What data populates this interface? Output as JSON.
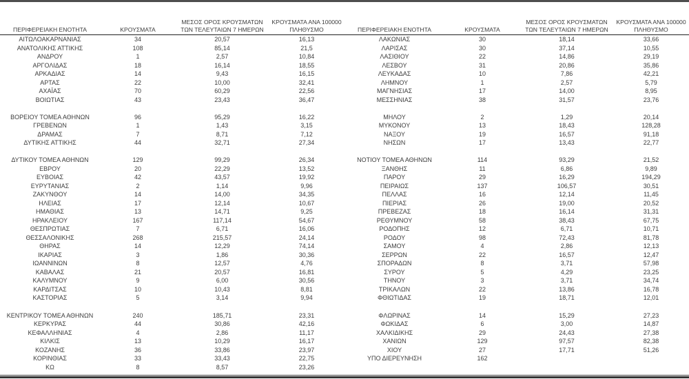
{
  "colors": {
    "text": "#3d3d3d",
    "rule": "#333333"
  },
  "headers": {
    "region": "ΠΕΡΙΦΕΡΕΙΑΚΗ ΕΝΟΤΗΤΑ",
    "cases": "ΚΡΟΥΣΜΑΤΑ",
    "avg7_line1": "ΜΕΣΟΣ ΟΡΟΣ ΚΡΟΥΣΜΑΤΩΝ",
    "avg7_line2": "ΤΩΝ ΤΕΛΕΥΤΑΙΩΝ 7 ΗΜΕΡΩΝ",
    "per100k_line1": "ΚΡΟΥΣΜΑΤΑ ΑΝΑ 100000",
    "per100k_line2": "ΠΛΗΘΥΣΜΟ"
  },
  "left_table": {
    "rows": [
      [
        "ΑΙΤΩΛΟΑΚΑΡΝΑΝΙΑΣ",
        "34",
        "20,57",
        "16,13"
      ],
      [
        "ΑΝΑΤΟΛΙΚΗΣ ΑΤΤΙΚΗΣ",
        "108",
        "85,14",
        "21,5"
      ],
      [
        "ΑΝΔΡΟΥ",
        "1",
        "2,57",
        "10,84"
      ],
      [
        "ΑΡΓΟΛΙΔΑΣ",
        "18",
        "16,14",
        "18,55"
      ],
      [
        "ΑΡΚΑΔΙΑΣ",
        "14",
        "9,43",
        "16,15"
      ],
      [
        "ΑΡΤΑΣ",
        "22",
        "10,00",
        "32,41"
      ],
      [
        "ΑΧΑΪΑΣ",
        "70",
        "60,29",
        "22,56"
      ],
      [
        "ΒΟΙΩΤΙΑΣ",
        "43",
        "23,43",
        "36,47"
      ],
      null,
      [
        "ΒΟΡΕΙΟΥ ΤΟΜΕΑ ΑΘΗΝΩΝ",
        "96",
        "95,29",
        "16,22"
      ],
      [
        "ΓΡΕΒΕΝΩΝ",
        "1",
        "1,43",
        "3,15"
      ],
      [
        "ΔΡΑΜΑΣ",
        "7",
        "8,71",
        "7,12"
      ],
      [
        "ΔΥΤΙΚΗΣ ΑΤΤΙΚΗΣ",
        "44",
        "32,71",
        "27,34"
      ],
      null,
      [
        "ΔΥΤΙΚΟΥ ΤΟΜΕΑ ΑΘΗΝΩΝ",
        "129",
        "99,29",
        "26,34"
      ],
      [
        "ΕΒΡΟΥ",
        "20",
        "22,29",
        "13,52"
      ],
      [
        "ΕΥΒΟΙΑΣ",
        "42",
        "43,57",
        "19,92"
      ],
      [
        "ΕΥΡΥΤΑΝΙΑΣ",
        "2",
        "1,14",
        "9,96"
      ],
      [
        "ΖΑΚΥΝΘΟΥ",
        "14",
        "14,00",
        "34,35"
      ],
      [
        "ΗΛΕΙΑΣ",
        "17",
        "12,14",
        "10,67"
      ],
      [
        "ΗΜΑΘΙΑΣ",
        "13",
        "14,71",
        "9,25"
      ],
      [
        "ΗΡΑΚΛΕΙΟΥ",
        "167",
        "117,14",
        "54,67"
      ],
      [
        "ΘΕΣΠΡΩΤΙΑΣ",
        "7",
        "6,71",
        "16,06"
      ],
      [
        "ΘΕΣΣΑΛΟΝΙΚΗΣ",
        "268",
        "215,57",
        "24,14"
      ],
      [
        "ΘΗΡΑΣ",
        "14",
        "12,29",
        "74,14"
      ],
      [
        "ΙΚΑΡΙΑΣ",
        "3",
        "1,86",
        "30,36"
      ],
      [
        "ΙΩΑΝΝΙΝΩΝ",
        "8",
        "12,57",
        "4,76"
      ],
      [
        "ΚΑΒΑΛΑΣ",
        "21",
        "20,57",
        "16,81"
      ],
      [
        "ΚΑΛΥΜΝΟΥ",
        "9",
        "6,00",
        "30,56"
      ],
      [
        "ΚΑΡΔΙΤΣΑΣ",
        "10",
        "10,43",
        "8,81"
      ],
      [
        "ΚΑΣΤΟΡΙΑΣ",
        "5",
        "3,14",
        "9,94"
      ],
      null,
      [
        "ΚΕΝΤΡΙΚΟΥ ΤΟΜΕΑ ΑΘΗΝΩΝ",
        "240",
        "185,71",
        "23,31"
      ],
      [
        "ΚΕΡΚΥΡΑΣ",
        "44",
        "30,86",
        "42,16"
      ],
      [
        "ΚΕΦΑΛΛΗΝΙΑΣ",
        "4",
        "2,86",
        "11,17"
      ],
      [
        "ΚΙΛΚΙΣ",
        "13",
        "10,29",
        "16,17"
      ],
      [
        "ΚΟΖΑΝΗΣ",
        "36",
        "33,86",
        "23,97"
      ],
      [
        "ΚΟΡΙΝΘΙΑΣ",
        "33",
        "33,43",
        "22,75"
      ],
      [
        "ΚΩ",
        "8",
        "8,57",
        "23,26"
      ]
    ]
  },
  "right_table": {
    "rows": [
      [
        "ΛΑΚΩΝΙΑΣ",
        "30",
        "18,14",
        "33,66"
      ],
      [
        "ΛΑΡΙΣΑΣ",
        "30",
        "37,14",
        "10,55"
      ],
      [
        "ΛΑΣΙΘΙΟΥ",
        "22",
        "14,86",
        "29,19"
      ],
      [
        "ΛΕΣΒΟΥ",
        "31",
        "20,86",
        "35,86"
      ],
      [
        "ΛΕΥΚΑΔΑΣ",
        "10",
        "7,86",
        "42,21"
      ],
      [
        "ΛΗΜΝΟΥ",
        "1",
        "2,57",
        "5,79"
      ],
      [
        "ΜΑΓΝΗΣΙΑΣ",
        "17",
        "14,00",
        "8,95"
      ],
      [
        "ΜΕΣΣΗΝΙΑΣ",
        "38",
        "31,57",
        "23,76"
      ],
      null,
      [
        "ΜΗΛΟΥ",
        "2",
        "1,29",
        "20,14"
      ],
      [
        "ΜΥΚΟΝΟΥ",
        "13",
        "18,43",
        "128,28"
      ],
      [
        "ΝΑΞΟΥ",
        "19",
        "16,57",
        "91,18"
      ],
      [
        "ΝΗΣΩΝ",
        "17",
        "13,43",
        "22,77"
      ],
      null,
      [
        "ΝΟΤΙΟΥ ΤΟΜΕΑ ΑΘΗΝΩΝ",
        "114",
        "93,29",
        "21,52"
      ],
      [
        "ΞΑΝΘΗΣ",
        "11",
        "6,86",
        "9,89"
      ],
      [
        "ΠΑΡΟΥ",
        "29",
        "16,29",
        "194,29"
      ],
      [
        "ΠΕΙΡΑΙΩΣ",
        "137",
        "106,57",
        "30,51"
      ],
      [
        "ΠΕΛΛΑΣ",
        "16",
        "12,14",
        "11,45"
      ],
      [
        "ΠΙΕΡΙΑΣ",
        "26",
        "19,00",
        "20,52"
      ],
      [
        "ΠΡΕΒΕΖΑΣ",
        "18",
        "16,14",
        "31,31"
      ],
      [
        "ΡΕΘΥΜΝΟΥ",
        "58",
        "38,43",
        "67,75"
      ],
      [
        "ΡΟΔΟΠΗΣ",
        "12",
        "6,71",
        "10,71"
      ],
      [
        "ΡΟΔΟΥ",
        "98",
        "72,43",
        "81,78"
      ],
      [
        "ΣΑΜΟΥ",
        "4",
        "2,86",
        "12,13"
      ],
      [
        "ΣΕΡΡΩΝ",
        "22",
        "16,57",
        "12,47"
      ],
      [
        "ΣΠΟΡΑΔΩΝ",
        "8",
        "3,71",
        "57,98"
      ],
      [
        "ΣΥΡΟΥ",
        "5",
        "4,29",
        "23,25"
      ],
      [
        "ΤΗΝΟΥ",
        "3",
        "3,71",
        "34,74"
      ],
      [
        "ΤΡΙΚΑΛΩΝ",
        "22",
        "13,86",
        "16,78"
      ],
      [
        "ΦΘΙΩΤΙΔΑΣ",
        "19",
        "18,71",
        "12,01"
      ],
      null,
      [
        "ΦΛΩΡΙΝΑΣ",
        "14",
        "15,29",
        "27,23"
      ],
      [
        "ΦΩΚΙΔΑΣ",
        "6",
        "3,00",
        "14,87"
      ],
      [
        "ΧΑΛΚΙΔΙΚΗΣ",
        "29",
        "24,43",
        "27,38"
      ],
      [
        "ΧΑΝΙΩΝ",
        "129",
        "97,57",
        "82,38"
      ],
      [
        "ΧΙΟΥ",
        "27",
        "17,71",
        "51,26"
      ],
      [
        "ΥΠΟ ΔΙΕΡΕΥΝΗΣΗ",
        "162",
        "",
        ""
      ]
    ]
  }
}
